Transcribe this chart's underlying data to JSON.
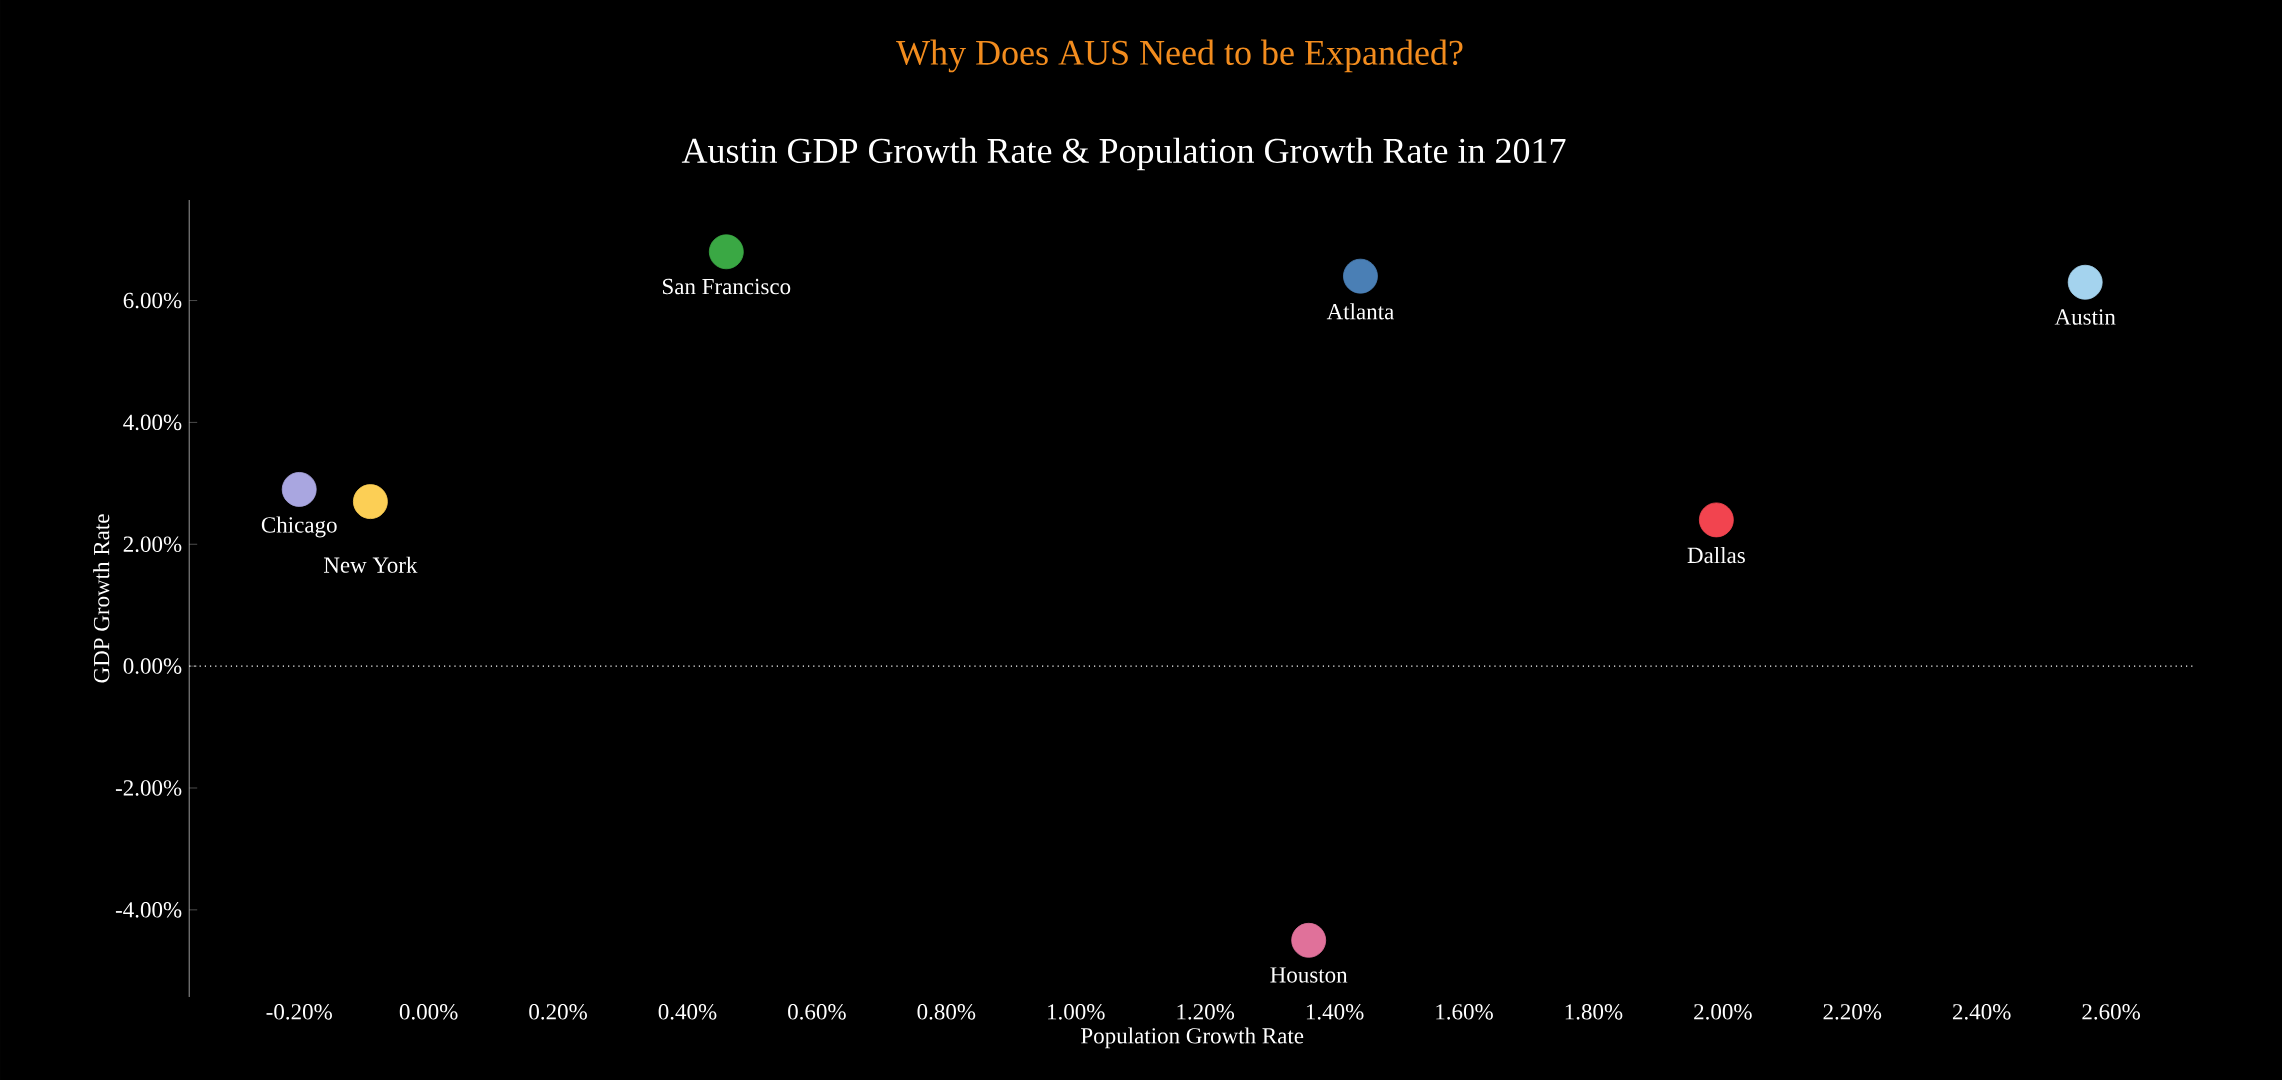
{
  "chart_data": {
    "type": "scatter",
    "title": "Why Does AUS Need to be Expanded?",
    "subtitle": "Austin GDP Growth Rate & Population Growth Rate in 2017",
    "xlabel": "Population Growth Rate",
    "ylabel": "GDP Growth Rate",
    "xlim": [
      -0.37,
      2.73
    ],
    "ylim": [
      -5.43,
      7.65
    ],
    "xticks": [
      {
        "value": -0.2,
        "label": "-0.20%"
      },
      {
        "value": 0,
        "label": "0.00%"
      },
      {
        "value": 0.2,
        "label": "0.20%"
      },
      {
        "value": 0.4,
        "label": "0.40%"
      },
      {
        "value": 0.6,
        "label": "0.60%"
      },
      {
        "value": 0.8,
        "label": "0.80%"
      },
      {
        "value": 1.0,
        "label": "1.00%"
      },
      {
        "value": 1.2,
        "label": "1.20%"
      },
      {
        "value": 1.4,
        "label": "1.40%"
      },
      {
        "value": 1.6,
        "label": "1.60%"
      },
      {
        "value": 1.8,
        "label": "1.80%"
      },
      {
        "value": 2.0,
        "label": "2.00%"
      },
      {
        "value": 2.2,
        "label": "2.20%"
      },
      {
        "value": 2.4,
        "label": "2.40%"
      },
      {
        "value": 2.6,
        "label": "2.60%"
      }
    ],
    "yticks": [
      {
        "value": -4,
        "label": "-4.00%"
      },
      {
        "value": -2,
        "label": "-2.00%"
      },
      {
        "value": 0,
        "label": "0.00%"
      },
      {
        "value": 2,
        "label": "2.00%"
      },
      {
        "value": 4,
        "label": "4.00%"
      },
      {
        "value": 6,
        "label": "6.00%"
      }
    ],
    "marker": "circle",
    "grid": false,
    "ref_lines": [
      {
        "axis": "y",
        "value": 0,
        "color": "#ffffff",
        "line_style": "dotted"
      }
    ],
    "annotations": [
      {
        "text": "San Francisco",
        "x": 0.46,
        "y": 6.8
      },
      {
        "text": "Atlanta",
        "x": 1.44,
        "y": 6.4
      },
      {
        "text": "Austin",
        "x": 2.56,
        "y": 6.3
      },
      {
        "text": "Chicago",
        "x": -0.2,
        "y": 2.9
      },
      {
        "text": "New York",
        "x": -0.09,
        "y": 2.7
      },
      {
        "text": "Dallas",
        "x": 1.99,
        "y": 2.4
      },
      {
        "text": "Houston",
        "x": 1.36,
        "y": -4.5
      }
    ],
    "series": [
      {
        "color": "#3aa844",
        "x": [
          0.46
        ],
        "values": [
          6.8
        ]
      },
      {
        "color": "#4a7fb5",
        "x": [
          1.44
        ],
        "values": [
          6.4
        ]
      },
      {
        "color": "#a4d3ee",
        "x": [
          2.56
        ],
        "values": [
          6.3
        ]
      },
      {
        "color": "#a9a6e0",
        "x": [
          -0.2
        ],
        "values": [
          2.9
        ]
      },
      {
        "color": "#fccf55",
        "x": [
          -0.09
        ],
        "values": [
          2.7
        ]
      },
      {
        "color": "#f2444f",
        "x": [
          1.99
        ],
        "values": [
          2.4
        ]
      },
      {
        "color": "#e0719a",
        "x": [
          1.36
        ],
        "values": [
          -4.5
        ]
      }
    ]
  }
}
